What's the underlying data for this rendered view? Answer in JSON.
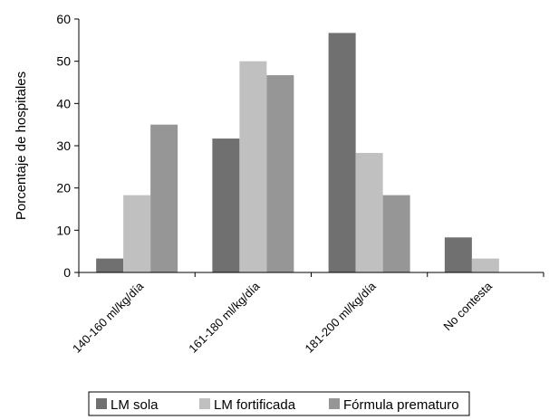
{
  "chart_data": {
    "type": "bar",
    "title": "",
    "xlabel": "",
    "ylabel": "Porcentaje de hospitales",
    "ylim": [
      0,
      60
    ],
    "yticks": [
      0,
      10,
      20,
      30,
      40,
      50,
      60
    ],
    "grid": false,
    "legend_position": "bottom",
    "categories": [
      "140-160 ml/kg/día",
      "161-180 ml/kg/día",
      "181-200 ml/kg/día",
      "No contesta"
    ],
    "series": [
      {
        "name": "LM sola",
        "color": "#707070",
        "values": [
          3.3,
          31.7,
          56.7,
          8.3
        ]
      },
      {
        "name": "LM fortificada",
        "color": "#c0c0c0",
        "values": [
          18.3,
          50.0,
          28.3,
          3.3
        ]
      },
      {
        "name": "Fórmula prematuro",
        "color": "#969696",
        "values": [
          35.0,
          46.7,
          18.3,
          0
        ]
      }
    ]
  }
}
